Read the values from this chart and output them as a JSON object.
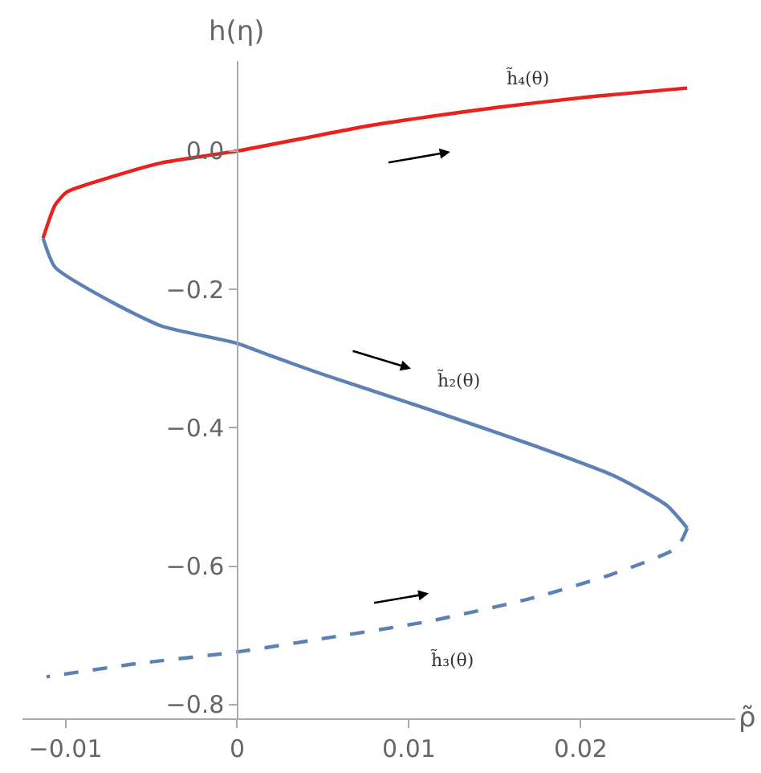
{
  "chart_data": {
    "type": "line",
    "xlabel": "ρ̃",
    "ylabel": "h(η)",
    "xlim": [
      -0.0125,
      0.029
    ],
    "ylim": [
      -0.82,
      0.13
    ],
    "xticks": [
      {
        "value": -0.01,
        "label": "−0.01"
      },
      0,
      0.01,
      0.02
    ],
    "yticks": [
      {
        "value": 0,
        "label": "0.0"
      },
      {
        "value": -0.2,
        "label": "−0.2"
      },
      {
        "value": -0.4,
        "label": "−0.4"
      },
      {
        "value": -0.6,
        "label": "−0.6"
      },
      {
        "value": -0.8,
        "label": "−0.8"
      }
    ],
    "grid": false,
    "legend": false,
    "marker": "none",
    "series": [
      {
        "name": "h̃₄(θ)",
        "color": "#e8221f",
        "line_style": "solid",
        "x": [
          -0.0113,
          -0.0106,
          -0.0099,
          -0.0074,
          -0.0044,
          0,
          0.008,
          0.0151,
          0.0204,
          0.0262
        ],
        "values": [
          -0.126,
          -0.078,
          -0.059,
          -0.038,
          -0.017,
          0,
          0.038,
          0.063,
          0.078,
          0.091
        ]
      },
      {
        "name": "h̃₂(θ)",
        "color": "#5e81b5",
        "line_style": "solid",
        "x": [
          -0.0113,
          -0.0106,
          -0.0074,
          -0.0044,
          0,
          0.00185,
          0.0049,
          0.0111,
          0.0172,
          0.0219,
          0.025,
          0.0262
        ],
        "values": [
          -0.126,
          -0.168,
          -0.217,
          -0.253,
          -0.278,
          -0.295,
          -0.322,
          -0.373,
          -0.425,
          -0.469,
          -0.512,
          -0.545
        ]
      },
      {
        "name": "h̃₃(θ)",
        "color": "#5e81b5",
        "line_style": "dashed",
        "x": [
          0.0262,
          0.0256,
          0.0219,
          0.0172,
          0.0111,
          0.0049,
          0,
          -0.0059,
          -0.0111
        ],
        "values": [
          -0.545,
          -0.573,
          -0.611,
          -0.646,
          -0.68,
          -0.705,
          -0.724,
          -0.741,
          -0.76
        ]
      }
    ]
  }
}
